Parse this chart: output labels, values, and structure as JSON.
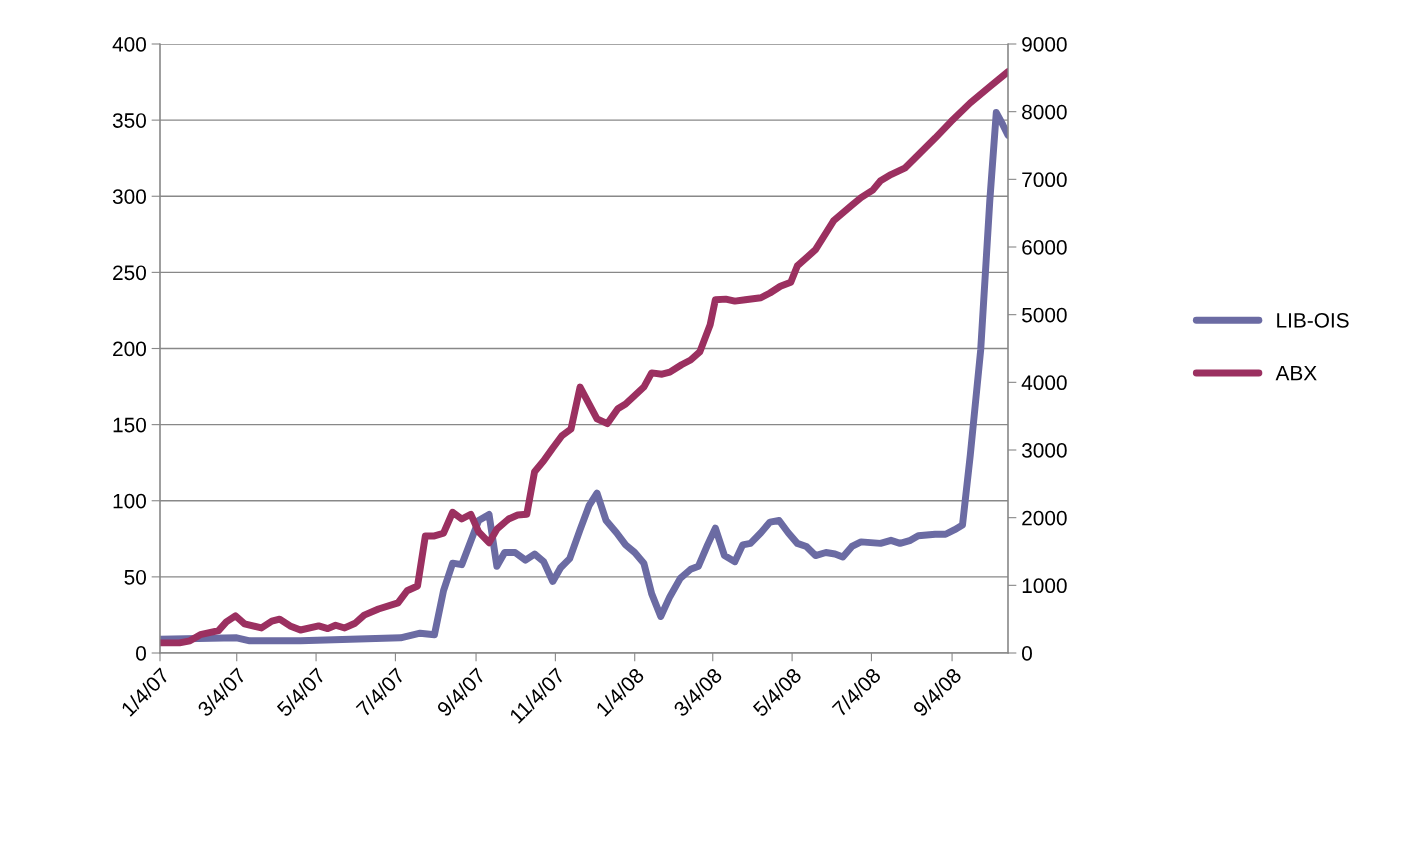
{
  "chart_data": {
    "type": "line",
    "xlim": [
      "2007-01-04",
      "2008-10-17"
    ],
    "xticks": [
      {
        "value": "2007-01-04",
        "label": "1/4/07"
      },
      {
        "value": "2007-03-04",
        "label": "3/4/07"
      },
      {
        "value": "2007-05-04",
        "label": "5/4/07"
      },
      {
        "value": "2007-07-04",
        "label": "7/4/07"
      },
      {
        "value": "2007-09-04",
        "label": "9/4/07"
      },
      {
        "value": "2007-11-04",
        "label": "11/4/07"
      },
      {
        "value": "2008-01-04",
        "label": "1/4/08"
      },
      {
        "value": "2008-03-04",
        "label": "3/4/08"
      },
      {
        "value": "2008-05-04",
        "label": "5/4/08"
      },
      {
        "value": "2008-07-04",
        "label": "7/4/08"
      },
      {
        "value": "2008-09-04",
        "label": "9/4/08"
      }
    ],
    "ylim": [
      0,
      400
    ],
    "yticks": [
      0,
      50,
      100,
      150,
      200,
      250,
      300,
      350,
      400
    ],
    "y2lim": [
      0,
      9000
    ],
    "y2ticks": [
      0,
      1000,
      2000,
      3000,
      4000,
      5000,
      6000,
      7000,
      8000,
      9000
    ],
    "grid": "y",
    "legend": "right",
    "marker": "none",
    "line_style": "solid",
    "series": [
      {
        "name": "LIB-OIS",
        "color": "#6b6ba3",
        "x": [
          "2007-01-04",
          "2007-03-04",
          "2007-03-14",
          "2007-04-22",
          "2007-07-08",
          "2007-07-23",
          "2007-08-03",
          "2007-08-10",
          "2007-08-17",
          "2007-08-24",
          "2007-09-06",
          "2007-09-14",
          "2007-09-20",
          "2007-09-26",
          "2007-10-04",
          "2007-10-12",
          "2007-10-19",
          "2007-10-26",
          "2007-11-02",
          "2007-11-08",
          "2007-11-15",
          "2007-11-23",
          "2007-11-30",
          "2007-12-06",
          "2007-12-13",
          "2007-12-21",
          "2007-12-28",
          "2008-01-04",
          "2008-01-11",
          "2008-01-17",
          "2008-01-24",
          "2008-01-31",
          "2008-02-08",
          "2008-02-16",
          "2008-02-22",
          "2008-02-29",
          "2008-03-06",
          "2008-03-13",
          "2008-03-21",
          "2008-03-27",
          "2008-04-02",
          "2008-04-10",
          "2008-04-17",
          "2008-04-24",
          "2008-05-01",
          "2008-05-08",
          "2008-05-15",
          "2008-05-22",
          "2008-05-30",
          "2008-06-06",
          "2008-06-12",
          "2008-06-19",
          "2008-06-26",
          "2008-07-11",
          "2008-07-19",
          "2008-07-26",
          "2008-08-03",
          "2008-08-09",
          "2008-08-22",
          "2008-08-30",
          "2008-09-06",
          "2008-09-12",
          "2008-09-18",
          "2008-09-26",
          "2008-10-03",
          "2008-10-08",
          "2008-10-13",
          "2008-10-17"
        ],
        "values": [
          9,
          10,
          8,
          8,
          10,
          13,
          12,
          41,
          59,
          58,
          87,
          91,
          57,
          66,
          66,
          61,
          65,
          60,
          47,
          56,
          62,
          81,
          97,
          105,
          87,
          79,
          71,
          66,
          59,
          39,
          24,
          37,
          49,
          55,
          57,
          71,
          82,
          64,
          60,
          71,
          72,
          79,
          86,
          87,
          79,
          72,
          70,
          64,
          66,
          65,
          63,
          70,
          73,
          72,
          74,
          72,
          74,
          77,
          78,
          78,
          81,
          84,
          130,
          199,
          297,
          355,
          347,
          340
        ]
      },
      {
        "name": "ABX",
        "color": "#9b3060",
        "axis": "y2",
        "x": [
          "2007-01-04",
          "2007-01-19",
          "2007-01-27",
          "2007-02-04",
          "2007-02-18",
          "2007-02-24",
          "2007-03-03",
          "2007-03-10",
          "2007-03-23",
          "2007-03-31",
          "2007-04-06",
          "2007-04-14",
          "2007-04-22",
          "2007-05-06",
          "2007-05-13",
          "2007-05-19",
          "2007-05-26",
          "2007-06-03",
          "2007-06-10",
          "2007-06-21",
          "2007-07-06",
          "2007-07-13",
          "2007-07-21",
          "2007-07-27",
          "2007-08-03",
          "2007-08-10",
          "2007-08-17",
          "2007-08-24",
          "2007-08-31",
          "2007-09-06",
          "2007-09-14",
          "2007-09-20",
          "2007-09-29",
          "2007-10-06",
          "2007-10-13",
          "2007-10-19",
          "2007-10-26",
          "2007-11-02",
          "2007-11-09",
          "2007-11-16",
          "2007-11-23",
          "2007-12-06",
          "2007-12-14",
          "2007-12-22",
          "2007-12-28",
          "2008-01-11",
          "2008-01-17",
          "2008-01-25",
          "2008-01-31",
          "2008-02-09",
          "2008-02-16",
          "2008-02-23",
          "2008-03-02",
          "2008-03-06",
          "2008-03-14",
          "2008-03-21",
          "2008-03-29",
          "2008-04-10",
          "2008-04-17",
          "2008-04-25",
          "2008-05-03",
          "2008-05-08",
          "2008-05-22",
          "2008-06-05",
          "2008-06-19",
          "2008-06-26",
          "2008-07-05",
          "2008-07-11",
          "2008-07-19",
          "2008-07-30",
          "2008-08-11",
          "2008-08-22",
          "2008-09-03",
          "2008-09-18",
          "2008-10-03",
          "2008-10-17"
        ],
        "values": [
          150,
          150,
          180,
          270,
          330,
          460,
          550,
          430,
          370,
          470,
          500,
          400,
          340,
          400,
          360,
          410,
          370,
          440,
          560,
          650,
          740,
          920,
          990,
          1730,
          1730,
          1770,
          2080,
          1980,
          2050,
          1790,
          1630,
          1830,
          1980,
          2040,
          2050,
          2680,
          2840,
          3030,
          3210,
          3310,
          3930,
          3460,
          3390,
          3610,
          3680,
          3930,
          4140,
          4120,
          4150,
          4260,
          4330,
          4450,
          4850,
          5220,
          5230,
          5200,
          5220,
          5250,
          5320,
          5420,
          5480,
          5720,
          5960,
          6390,
          6620,
          6730,
          6840,
          6980,
          7070,
          7170,
          7400,
          7610,
          7850,
          8130,
          8370,
          8590
        ]
      }
    ]
  }
}
